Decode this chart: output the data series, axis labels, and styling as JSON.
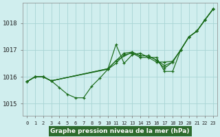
{
  "title": "Graphe pression niveau de la mer (hPa)",
  "background_color": "#d0eeee",
  "grid_color": "#a8d4d4",
  "line_color": "#1a6b1a",
  "title_bg_color": "#2e6b2e",
  "title_text_color": "#ffffff",
  "ylim": [
    1014.55,
    1018.75
  ],
  "xlim": [
    -0.5,
    23.5
  ],
  "yticks": [
    1015,
    1016,
    1017,
    1018
  ],
  "xticks": [
    0,
    1,
    2,
    3,
    4,
    5,
    6,
    7,
    8,
    9,
    10,
    11,
    12,
    13,
    14,
    15,
    16,
    17,
    18,
    19,
    20,
    21,
    22,
    23
  ],
  "series": [
    {
      "x": [
        0,
        1,
        2,
        3,
        4,
        5,
        6,
        7,
        8,
        9,
        10,
        11,
        12,
        13,
        14,
        15,
        16,
        17,
        18,
        19,
        20,
        21,
        22,
        23
      ],
      "y": [
        1015.82,
        1016.0,
        1016.0,
        1015.85,
        1015.6,
        1015.35,
        1015.22,
        1015.22,
        1015.65,
        1015.95,
        1016.28,
        1017.2,
        1016.5,
        1016.82,
        1016.88,
        1016.72,
        1016.72,
        1016.2,
        1016.2,
        1017.0,
        1017.48,
        1017.7,
        1018.12,
        1018.52
      ]
    },
    {
      "x": [
        0,
        1,
        2,
        3,
        10,
        11,
        12,
        13,
        14,
        15,
        16,
        17,
        18,
        19,
        20,
        21,
        22,
        23
      ],
      "y": [
        1015.82,
        1016.0,
        1016.0,
        1015.85,
        1016.28,
        1016.5,
        1016.82,
        1016.88,
        1016.72,
        1016.72,
        1016.55,
        1016.55,
        1016.58,
        1017.0,
        1017.48,
        1017.7,
        1018.12,
        1018.52
      ]
    },
    {
      "x": [
        0,
        1,
        2,
        3,
        10,
        11,
        12,
        13,
        14,
        15,
        16,
        17,
        18,
        19,
        20,
        21,
        22,
        23
      ],
      "y": [
        1015.82,
        1016.0,
        1016.0,
        1015.85,
        1016.3,
        1016.6,
        1016.88,
        1016.92,
        1016.78,
        1016.78,
        1016.62,
        1016.42,
        1016.55,
        1017.0,
        1017.48,
        1017.7,
        1018.12,
        1018.52
      ]
    },
    {
      "x": [
        0,
        1,
        2,
        3,
        10,
        11,
        13,
        14,
        15,
        16,
        17,
        18,
        19,
        20,
        21,
        22,
        23
      ],
      "y": [
        1015.82,
        1016.0,
        1016.0,
        1015.85,
        1016.3,
        1016.6,
        1016.92,
        1016.78,
        1016.78,
        1016.62,
        1016.32,
        1016.55,
        1017.0,
        1017.48,
        1017.7,
        1018.12,
        1018.52
      ]
    }
  ]
}
